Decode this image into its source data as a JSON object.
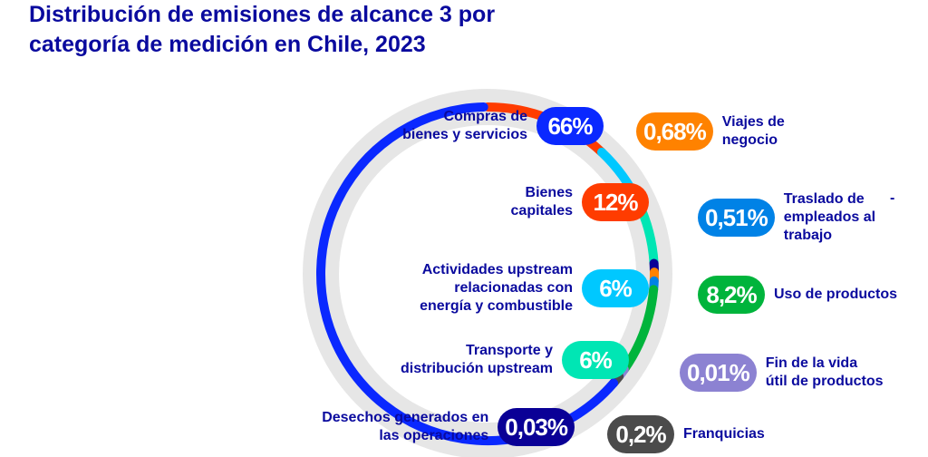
{
  "title": "Distribución de emisiones de alcance 3 por categoría de medición en Chile, 2023",
  "chart_data": {
    "type": "pie",
    "title": "Distribución de emisiones de alcance 3 por categoría de medición en Chile, 2023",
    "slices": [
      {
        "label": "Compras de bienes y servicios",
        "value": 66,
        "display": "66%",
        "color": "#0a28ff"
      },
      {
        "label": "Bienes capitales",
        "value": 12,
        "display": "12%",
        "color": "#ff3c00"
      },
      {
        "label": "Actividades upstream relacionadas con energía y combustible",
        "value": 6,
        "display": "6%",
        "color": "#00c8ff"
      },
      {
        "label": "Transporte y distribución upstream",
        "value": 6,
        "display": "6%",
        "color": "#00e6b4"
      },
      {
        "label": "Desechos generados en las operaciones",
        "value": 0.03,
        "display": "0,03%",
        "color": "#0a0096"
      },
      {
        "label": "Viajes de negocio",
        "value": 0.68,
        "display": "0,68%",
        "color": "#ff8200"
      },
      {
        "label": "Traslado de empleados al trabajo",
        "value": 0.51,
        "display": "0,51%",
        "color": "#0082e6"
      },
      {
        "label": "Uso de productos",
        "value": 8.2,
        "display": "8,2%",
        "color": "#00b43c"
      },
      {
        "label": "Fin de la vida útil de productos",
        "value": 0.01,
        "display": "0,01%",
        "color": "#8c82d2"
      },
      {
        "label": "Franquicias",
        "value": 0.2,
        "display": "0,2%",
        "color": "#4b4b4b"
      }
    ],
    "dash": "-"
  }
}
